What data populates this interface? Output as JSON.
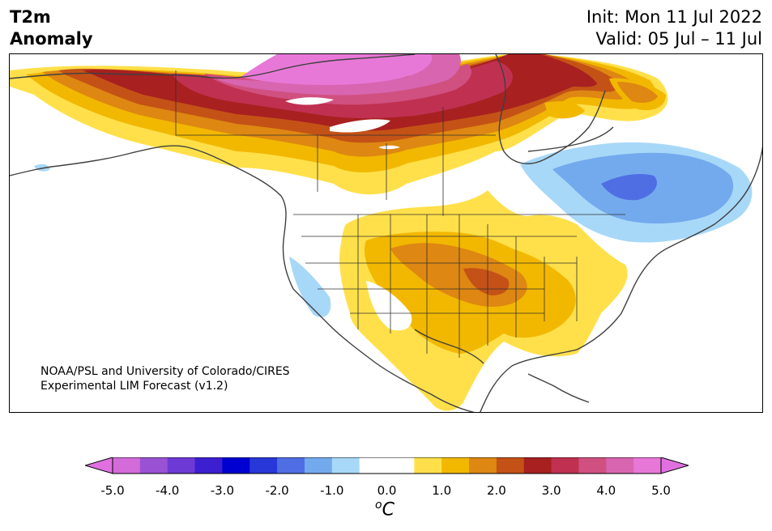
{
  "title": {
    "left_line1": "T2m",
    "left_line2": "Anomaly",
    "init": "Init: Mon 11 Jul 2022",
    "valid": "Valid: 05 Jul – 11 Jul"
  },
  "credit": {
    "line1": "NOAA/PSL and University of Colorado/CIRES",
    "line2": "Experimental LIM Forecast (v1.2)"
  },
  "colorbar": {
    "unit": "C",
    "unit_prefix": "o",
    "ticks": [
      "-5.0",
      "-4.0",
      "-3.0",
      "-2.0",
      "-1.0",
      "0.0",
      "1.0",
      "2.0",
      "3.0",
      "4.0",
      "5.0"
    ],
    "colors": [
      "#d36bd9",
      "#9a52d4",
      "#6d3ad6",
      "#3c1fcf",
      "#0000d0",
      "#2838d8",
      "#4f6ee4",
      "#73aaee",
      "#a8d8f8",
      "#ffffff",
      "#ffffff",
      "#ffe04a",
      "#f2b800",
      "#de8712",
      "#c45216",
      "#a82020",
      "#c03050",
      "#d05080",
      "#d865b0",
      "#e878d8"
    ],
    "under_color": "#e070e0",
    "over_color": "#e070e0"
  },
  "colors": {
    "coast": "#404040",
    "border": "#303030"
  }
}
